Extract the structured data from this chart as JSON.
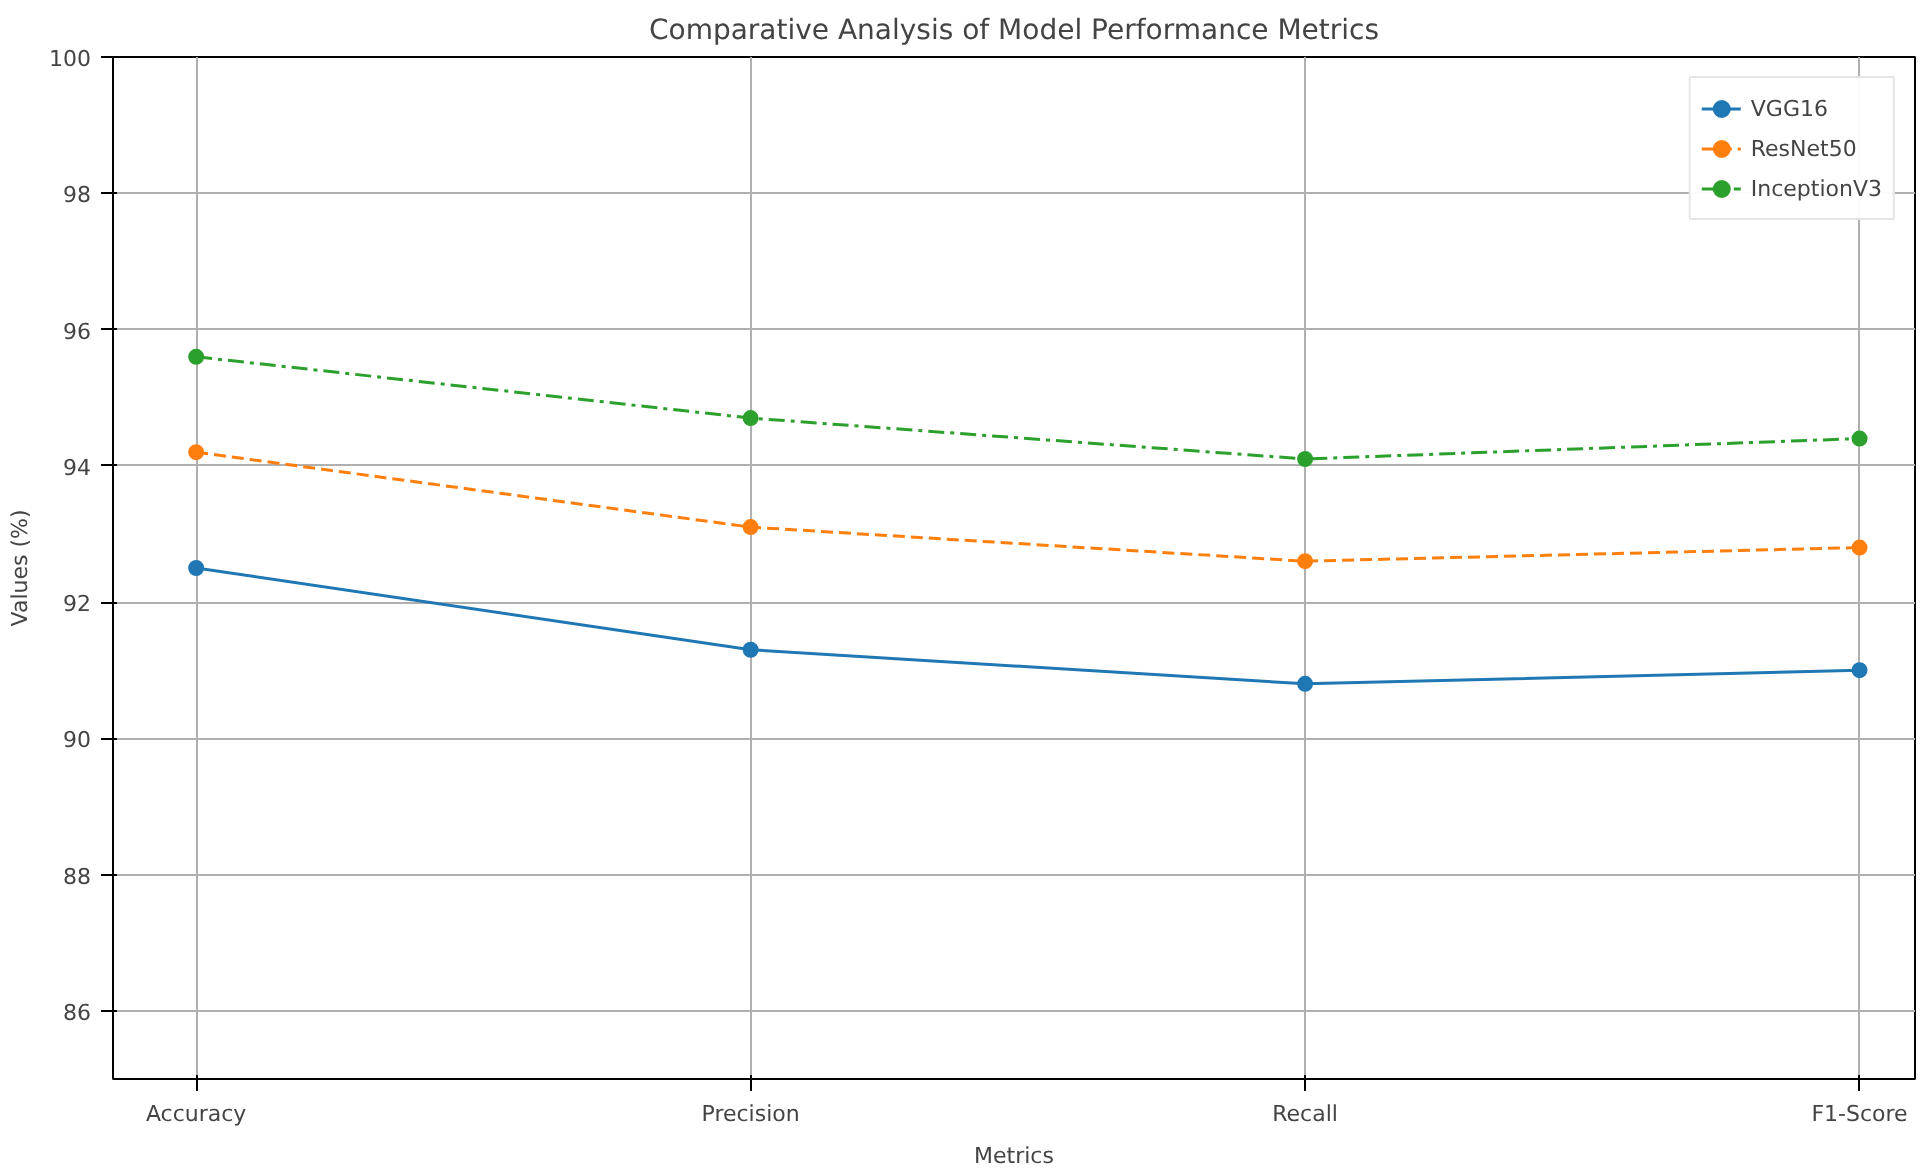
{
  "chart_data": {
    "type": "line",
    "title": "Comparative Analysis of Model Performance Metrics",
    "xlabel": "Metrics",
    "ylabel": "Values (%)",
    "categories": [
      "Accuracy",
      "Precision",
      "Recall",
      "F1-Score"
    ],
    "series": [
      {
        "name": "VGG16",
        "color": "#1f77b4",
        "line_style": "solid",
        "values": [
          92.5,
          91.3,
          90.8,
          91.0
        ]
      },
      {
        "name": "ResNet50",
        "color": "#ff7f0e",
        "line_style": "dashed",
        "values": [
          94.2,
          93.1,
          92.6,
          92.8
        ]
      },
      {
        "name": "InceptionV3",
        "color": "#2ca02c",
        "line_style": "dashdot",
        "values": [
          95.6,
          94.7,
          94.1,
          94.4
        ]
      }
    ],
    "ylim": [
      85,
      100
    ],
    "yticks": [
      86,
      88,
      90,
      92,
      94,
      96,
      98,
      100
    ],
    "grid": true,
    "legend": "top right",
    "marker": "circle"
  }
}
